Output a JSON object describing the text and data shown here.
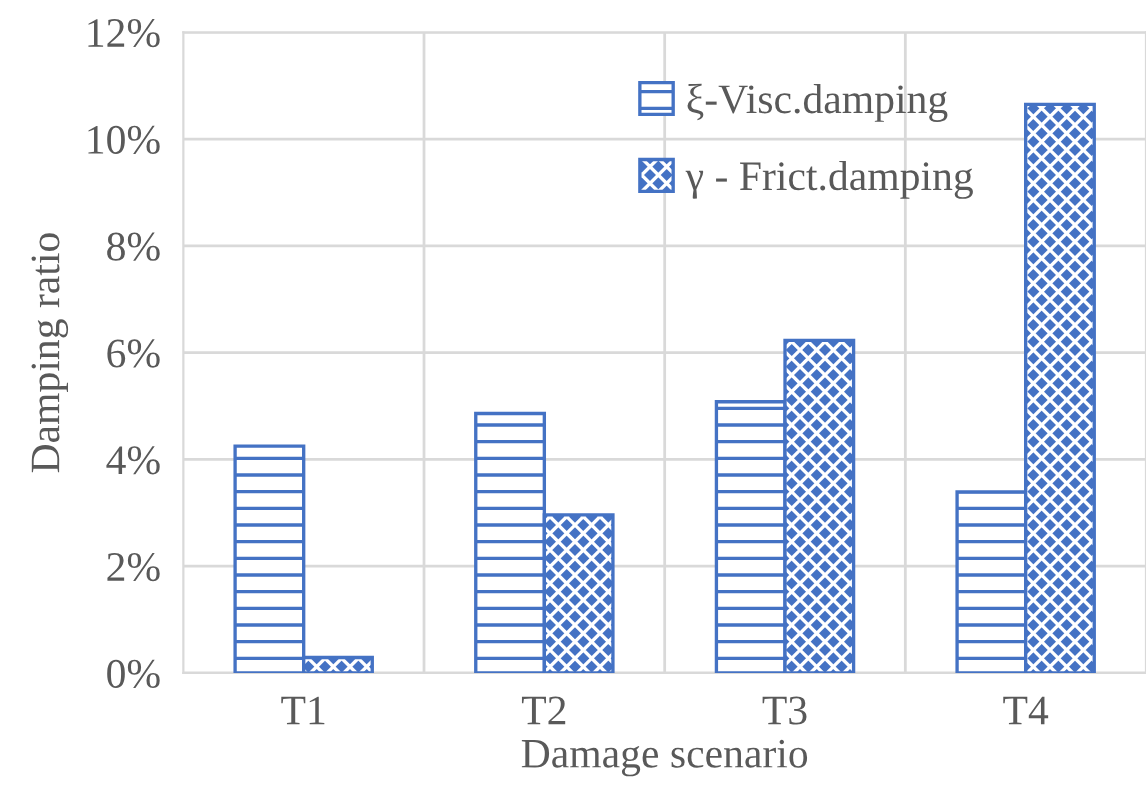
{
  "chart_data": {
    "type": "bar",
    "xlabel": "Damage scenario",
    "ylabel": "Damping ratio",
    "categories": [
      "T1",
      "T2",
      "T3",
      "T4"
    ],
    "series": [
      {
        "name": "ξ-Visc.damping",
        "color": "#4472c4",
        "values": [
          4.25,
          4.86,
          5.08,
          3.39
        ]
      },
      {
        "name": "γ - Frict.damping",
        "color": "#4472c4",
        "values": [
          0.29,
          2.96,
          6.23,
          10.65
        ]
      }
    ],
    "ylim": [
      0,
      12
    ],
    "yticks": [
      {
        "value": 0,
        "label": "0%"
      },
      {
        "value": 2,
        "label": "2%"
      },
      {
        "value": 4,
        "label": "4%"
      },
      {
        "value": 6,
        "label": "6%"
      },
      {
        "value": 8,
        "label": "8%"
      },
      {
        "value": 10,
        "label": "10%"
      },
      {
        "value": 12,
        "label": "12%"
      }
    ],
    "grid": true,
    "legend": "top right"
  }
}
